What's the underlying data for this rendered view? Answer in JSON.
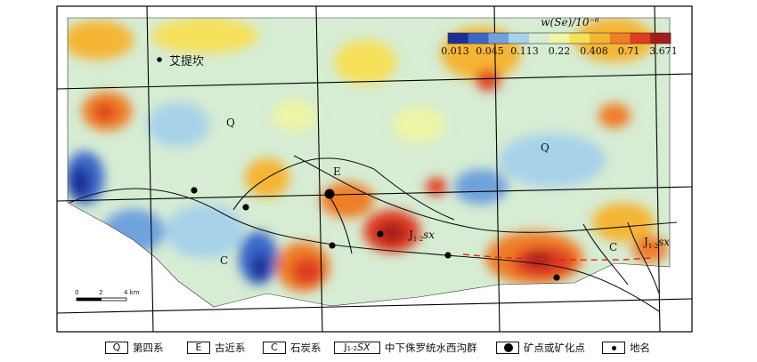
{
  "colorbar": {
    "title": "w(Se)/10⁻⁶",
    "colors": [
      "#1d2f96",
      "#3a69c9",
      "#6fa2dd",
      "#a7d2ea",
      "#d6ecd3",
      "#eef5a6",
      "#f7e05a",
      "#f5b534",
      "#ef7e27",
      "#df3c21",
      "#a51c1c"
    ],
    "tick_labels": [
      "0.013",
      "0.045",
      "0.113",
      "0.22",
      "0.408",
      "0.71",
      "3.671"
    ]
  },
  "map_labels": {
    "place_aitikan": "艾提坎",
    "q_north": "Q",
    "q_east": "Q",
    "e_center": "E",
    "c_southwest": "C",
    "c_southeast": "C",
    "jsx_center_main": "J",
    "jsx_center_sub": "1-2",
    "jsx_center_sx": "sx",
    "jsx_east_main": "J",
    "jsx_east_sub": "1-2",
    "jsx_east_sx": "sx"
  },
  "scale_bar": {
    "ticks": [
      "0",
      "2",
      "4 km"
    ]
  },
  "legend": {
    "items": [
      {
        "symbol": "Q",
        "label": "第四系"
      },
      {
        "symbol": "E",
        "label": "古近系"
      },
      {
        "symbol": "C",
        "label": "石炭系"
      },
      {
        "symbol_main": "J",
        "symbol_sub": "1-2",
        "symbol_sx": "SX",
        "label": "中下侏罗统水西沟群"
      },
      {
        "label": "矿点或矿化点"
      },
      {
        "label": "地名"
      }
    ]
  }
}
